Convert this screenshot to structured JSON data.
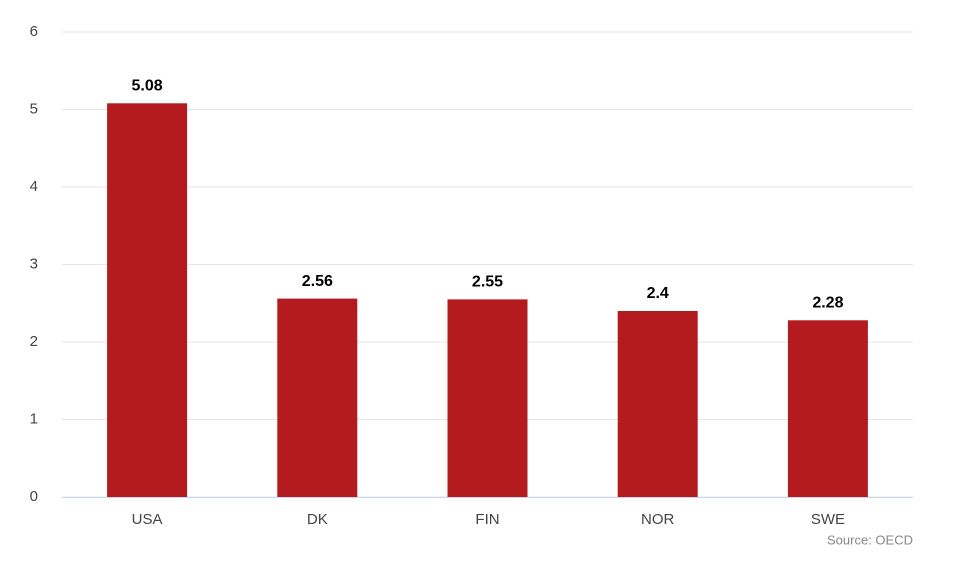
{
  "chart_data": {
    "type": "bar",
    "categories": [
      "USA",
      "DK",
      "FIN",
      "NOR",
      "SWE"
    ],
    "values": [
      5.08,
      2.56,
      2.55,
      2.4,
      2.28
    ],
    "color": "#b31b1e",
    "ylim": [
      0,
      6
    ],
    "yticks": [
      0,
      1,
      2,
      3,
      4,
      5,
      6
    ],
    "grid": true,
    "credit": "Source: OECD"
  }
}
